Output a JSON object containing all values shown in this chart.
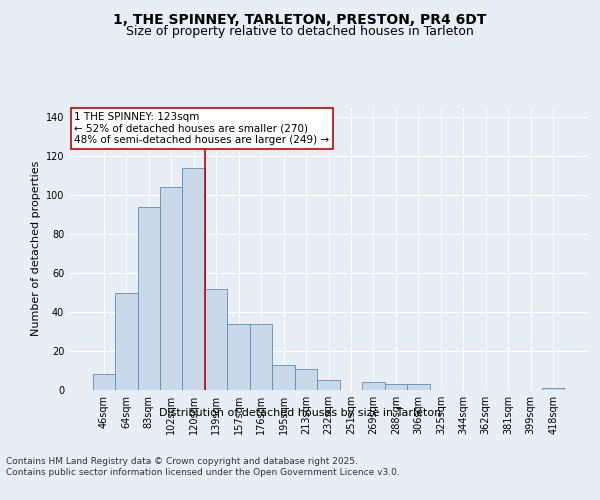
{
  "title": "1, THE SPINNEY, TARLETON, PRESTON, PR4 6DT",
  "subtitle": "Size of property relative to detached houses in Tarleton",
  "xlabel": "Distribution of detached houses by size in Tarleton",
  "ylabel": "Number of detached properties",
  "categories": [
    "46sqm",
    "64sqm",
    "83sqm",
    "102sqm",
    "120sqm",
    "139sqm",
    "157sqm",
    "176sqm",
    "195sqm",
    "213sqm",
    "232sqm",
    "251sqm",
    "269sqm",
    "288sqm",
    "306sqm",
    "325sqm",
    "344sqm",
    "362sqm",
    "381sqm",
    "399sqm",
    "418sqm"
  ],
  "values": [
    8,
    50,
    94,
    104,
    114,
    52,
    34,
    34,
    13,
    11,
    5,
    0,
    4,
    3,
    3,
    0,
    0,
    0,
    0,
    0,
    1
  ],
  "bar_color": "#c9d9ea",
  "bar_edge_color": "#5b8db8",
  "vline_index": 4,
  "vline_color": "#cc0000",
  "ylim": [
    0,
    145
  ],
  "yticks": [
    0,
    20,
    40,
    60,
    80,
    100,
    120,
    140
  ],
  "annotation_text": "1 THE SPINNEY: 123sqm\n← 52% of detached houses are smaller (270)\n48% of semi-detached houses are larger (249) →",
  "annotation_box_color": "#ffffff",
  "annotation_box_edge": "#cc0000",
  "footer": "Contains HM Land Registry data © Crown copyright and database right 2025.\nContains public sector information licensed under the Open Government Licence v3.0.",
  "background_color": "#e8eef5",
  "plot_background": "#e8eef5",
  "grid_color": "#ffffff",
  "title_fontsize": 10,
  "subtitle_fontsize": 9,
  "axis_label_fontsize": 8,
  "tick_fontsize": 7,
  "annotation_fontsize": 7.5,
  "footer_fontsize": 6.5
}
